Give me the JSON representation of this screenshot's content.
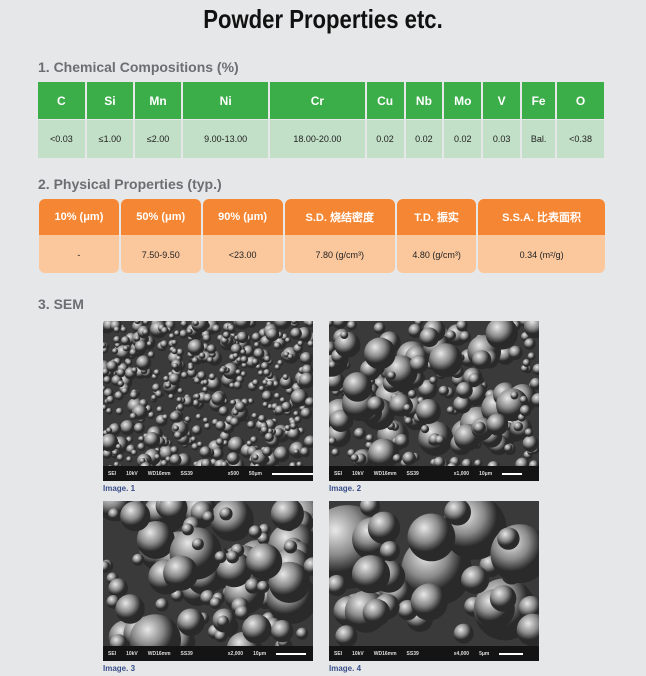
{
  "title": "Powder Properties etc.",
  "section1": {
    "heading": "1. Chemical Compositions (%)",
    "headers": [
      "C",
      "Si",
      "Mn",
      "Ni",
      "Cr",
      "Cu",
      "Nb",
      "Mo",
      "V",
      "Fe",
      "O"
    ],
    "values": [
      "<0.03",
      "≤1.00",
      "≤2.00",
      "9.00-13.00",
      "18.00-20.00",
      "0.02",
      "0.02",
      "0.02",
      "0.03",
      "Bal.",
      "<0.38"
    ],
    "header_color": "#3bae49",
    "row_color": "#c2dfc7"
  },
  "section2": {
    "heading": "2. Physical Properties (typ.)",
    "headers": [
      "10% (μm)",
      "50% (μm)",
      "90% (μm)",
      "S.D. 烧结密度",
      "T.D. 振实",
      "S.S.A. 比表面积"
    ],
    "values": [
      "-",
      "7.50-9.50",
      "<23.00",
      "7.80 (g/cm³)",
      "4.80 (g/cm³)",
      "0.34 (m²/g)"
    ],
    "header_color": "#f58633",
    "row_color": "#fbc89e"
  },
  "section3": {
    "heading": "3. SEM",
    "images": [
      {
        "caption": "Image. 1",
        "info": [
          "SEI",
          "10kV",
          "WD16mm",
          "SS39",
          "x500",
          "50μm"
        ]
      },
      {
        "caption": "Image. 2",
        "info": [
          "SEI",
          "10kV",
          "WD16mm",
          "SS39",
          "x1,000",
          "10μm"
        ]
      },
      {
        "caption": "Image. 3",
        "info": [
          "SEI",
          "10kV",
          "WD16mm",
          "SS39",
          "x2,000",
          "10μm"
        ]
      },
      {
        "caption": "Image. 4",
        "info": [
          "SEI",
          "10kV",
          "WD16mm",
          "SS39",
          "x4,000",
          "5μm"
        ]
      }
    ]
  }
}
